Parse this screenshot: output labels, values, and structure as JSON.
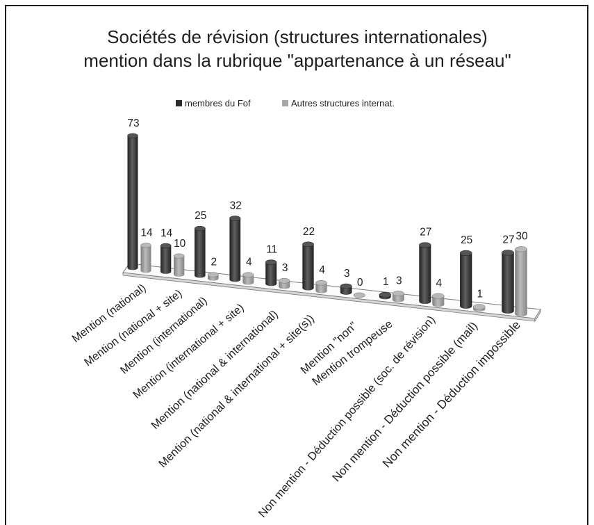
{
  "chart_data": {
    "type": "bar",
    "style": "3d-column",
    "title_lines": [
      "Sociétés de révision (structures internationales)",
      "mention dans la rubrique \"appartenance à un réseau\""
    ],
    "categories": [
      "Mention (national)",
      "Mention (national + site)",
      "Mention (international)",
      "Mention (international + site)",
      "Mention (national & international)",
      "Mention (national & international + site(s))",
      "Mention \"non\"",
      "Mention trompeuse",
      "Non mention - Déduction possible (soc. de révision)",
      "Non mention - Déduction possible (mail)",
      "Non mention - Déduction impossible"
    ],
    "series": [
      {
        "name": "membres du Fof",
        "color": "#2b2b2b",
        "values": [
          73,
          14,
          25,
          32,
          11,
          22,
          3,
          1,
          27,
          25,
          27
        ]
      },
      {
        "name": "Autres structures internat.",
        "color": "#a6a6a6",
        "values": [
          14,
          10,
          2,
          4,
          3,
          4,
          0,
          3,
          4,
          1,
          30
        ]
      }
    ],
    "data_labels": true,
    "legend": "top",
    "y_axis_visible": false,
    "grid": false
  }
}
